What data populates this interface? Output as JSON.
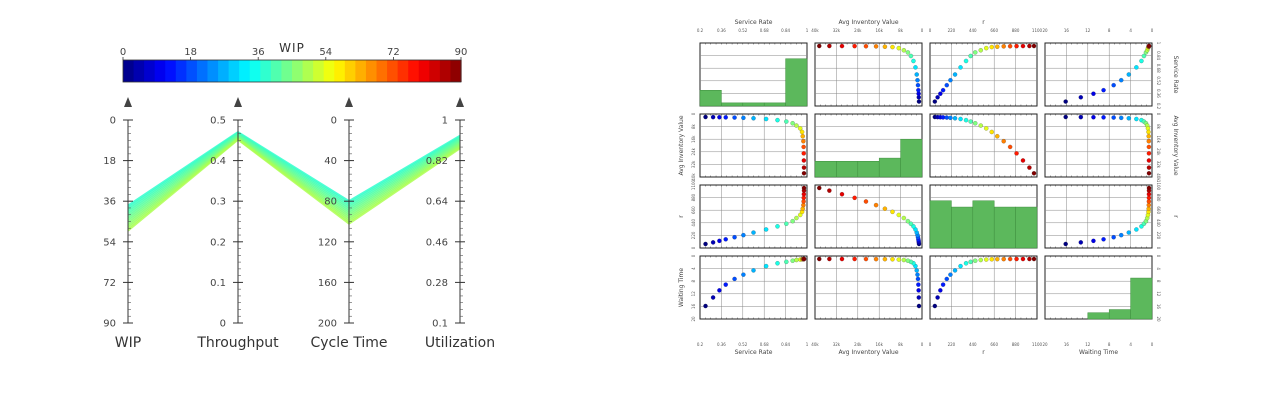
{
  "chart_data": [
    {
      "type": "parallel-coordinates",
      "colorbar": {
        "title": "WIP",
        "range": [
          0,
          90
        ],
        "ticks": [
          "0",
          "18",
          "36",
          "54",
          "72",
          "90"
        ]
      },
      "axes": [
        {
          "name": "WIP",
          "range": [
            0,
            90
          ],
          "inverted": true,
          "ticks": [
            "0",
            "18",
            "36",
            "54",
            "72",
            "90"
          ]
        },
        {
          "name": "Throughput",
          "range": [
            0,
            0.5
          ],
          "inverted": false,
          "ticks": [
            "0",
            "0.1",
            "0.2",
            "0.3",
            "0.4",
            "0.5"
          ]
        },
        {
          "name": "Cycle Time",
          "range": [
            0,
            200
          ],
          "inverted": true,
          "ticks": [
            "0",
            "40",
            "80",
            "120",
            "160",
            "200"
          ]
        },
        {
          "name": "Utilization",
          "range": [
            0.1,
            1
          ],
          "inverted": false,
          "ticks": [
            "0.1",
            "0.28",
            "0.46",
            "0.64",
            "0.82",
            "1"
          ]
        }
      ],
      "lines": [
        {
          "WIP": 38,
          "Throughput": 0.47,
          "Cycle Time": 80,
          "Utilization": 0.93
        },
        {
          "WIP": 39,
          "Throughput": 0.468,
          "Cycle Time": 82,
          "Utilization": 0.925
        },
        {
          "WIP": 40,
          "Throughput": 0.466,
          "Cycle Time": 84,
          "Utilization": 0.92
        },
        {
          "WIP": 41,
          "Throughput": 0.464,
          "Cycle Time": 86,
          "Utilization": 0.915
        },
        {
          "WIP": 42,
          "Throughput": 0.462,
          "Cycle Time": 88,
          "Utilization": 0.91
        },
        {
          "WIP": 43,
          "Throughput": 0.46,
          "Cycle Time": 90,
          "Utilization": 0.905
        },
        {
          "WIP": 44,
          "Throughput": 0.458,
          "Cycle Time": 92,
          "Utilization": 0.9
        },
        {
          "WIP": 45,
          "Throughput": 0.456,
          "Cycle Time": 94,
          "Utilization": 0.895
        },
        {
          "WIP": 46,
          "Throughput": 0.455,
          "Cycle Time": 96,
          "Utilization": 0.89
        },
        {
          "WIP": 47,
          "Throughput": 0.454,
          "Cycle Time": 98,
          "Utilization": 0.885
        },
        {
          "WIP": 48,
          "Throughput": 0.453,
          "Cycle Time": 100,
          "Utilization": 0.88
        },
        {
          "WIP": 49,
          "Throughput": 0.452,
          "Cycle Time": 102,
          "Utilization": 0.875
        }
      ]
    },
    {
      "type": "scatter-matrix",
      "variables": [
        {
          "name": "Service Rate",
          "ticks": [
            "0.2",
            "0.36",
            "0.52",
            "0.68",
            "0.84",
            "1"
          ]
        },
        {
          "name": "Avg Inventory Value",
          "ticks": [
            "40k",
            "32k",
            "24k",
            "16k",
            "8k",
            "0"
          ]
        },
        {
          "name": "r",
          "ticks": [
            "0",
            "220",
            "440",
            "660",
            "880",
            "1100"
          ]
        },
        {
          "name": "Waiting Time",
          "ticks": [
            "20",
            "16",
            "12",
            "8",
            "4",
            "0"
          ]
        }
      ],
      "row_ticks": [
        [
          "1",
          "0.84",
          "0.68",
          "0.52",
          "0.36",
          "0.2"
        ],
        [
          "0",
          "8k",
          "16k",
          "24k",
          "32k",
          "40k"
        ],
        [
          "1100",
          "880",
          "660",
          "440",
          "220",
          "0"
        ],
        [
          "0",
          "4",
          "8",
          "12",
          "16",
          "20"
        ]
      ],
      "points": [
        {
          "sr": 0.22,
          "inv": 0,
          "r": 20,
          "wt": 16.5
        },
        {
          "sr": 0.28,
          "inv": 80,
          "r": 50,
          "wt": 13.5
        },
        {
          "sr": 0.33,
          "inv": 150,
          "r": 80,
          "wt": 11.0
        },
        {
          "sr": 0.38,
          "inv": 250,
          "r": 110,
          "wt": 9.0
        },
        {
          "sr": 0.45,
          "inv": 400,
          "r": 150,
          "wt": 7.0
        },
        {
          "sr": 0.52,
          "inv": 600,
          "r": 190,
          "wt": 5.5
        },
        {
          "sr": 0.6,
          "inv": 900,
          "r": 240,
          "wt": 4.0
        },
        {
          "sr": 0.7,
          "inv": 1400,
          "r": 300,
          "wt": 2.5
        },
        {
          "sr": 0.79,
          "inv": 2200,
          "r": 360,
          "wt": 1.5
        },
        {
          "sr": 0.86,
          "inv": 3200,
          "r": 410,
          "wt": 1.0
        },
        {
          "sr": 0.91,
          "inv": 4400,
          "r": 460,
          "wt": 0.6
        },
        {
          "sr": 0.94,
          "inv": 6000,
          "r": 520,
          "wt": 0.35
        },
        {
          "sr": 0.97,
          "inv": 8000,
          "r": 580,
          "wt": 0.2
        },
        {
          "sr": 0.985,
          "inv": 10500,
          "r": 640,
          "wt": 0.1
        },
        {
          "sr": 0.99,
          "inv": 13500,
          "r": 700,
          "wt": 0.06
        },
        {
          "sr": 0.995,
          "inv": 17000,
          "r": 770,
          "wt": 0.04
        },
        {
          "sr": 0.997,
          "inv": 21000,
          "r": 840,
          "wt": 0.02
        },
        {
          "sr": 0.998,
          "inv": 25500,
          "r": 910,
          "wt": 0.01
        },
        {
          "sr": 0.999,
          "inv": 30500,
          "r": 980,
          "wt": 0.01
        },
        {
          "sr": 1.0,
          "inv": 35500,
          "r": 1050,
          "wt": 0.0
        },
        {
          "sr": 1.0,
          "inv": 39500,
          "r": 1100,
          "wt": 0.0
        }
      ],
      "histogram_fractions": [
        [
          0.25,
          0.05,
          0.05,
          0.05,
          0.75
        ],
        [
          0.25,
          0.25,
          0.25,
          0.3,
          0.6
        ],
        [
          0.75,
          0.65,
          0.75,
          0.65,
          0.65
        ],
        [
          0.0,
          0.0,
          0.1,
          0.15,
          0.65
        ]
      ]
    }
  ]
}
